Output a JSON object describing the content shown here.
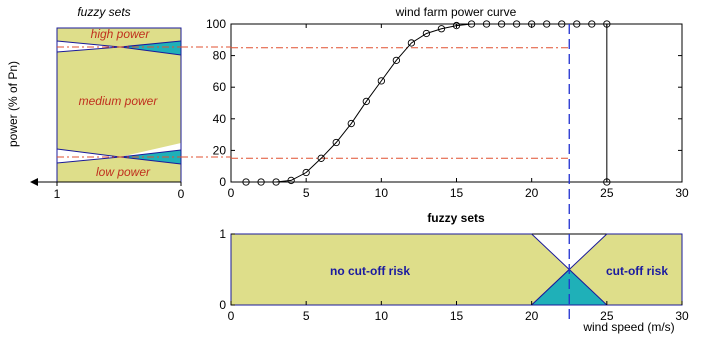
{
  "colors": {
    "fuzzy_fill": "#dede8a",
    "overlap_fill": "#1fb0b8",
    "dashdot_red": "#e05030",
    "dash_blue": "#2030d0",
    "curve": "#000000"
  },
  "chart_data": [
    {
      "type": "line",
      "title": "wind farm power curve",
      "xlim": [
        0,
        30
      ],
      "ylim": [
        0,
        100
      ],
      "x_ticks": [
        "0",
        "5",
        "10",
        "15",
        "20",
        "25",
        "30"
      ],
      "y_ticks": [
        "0",
        "20",
        "40",
        "60",
        "80",
        "100"
      ],
      "ylabel": "power (% of Pn)",
      "grid": false,
      "series": [
        {
          "x": [
            1,
            2,
            3,
            4,
            5,
            6,
            7,
            8,
            9,
            10,
            11,
            12,
            13,
            14,
            15,
            16,
            17,
            18,
            19,
            20,
            21,
            22,
            23,
            24,
            25,
            25
          ],
          "y": [
            0,
            0,
            0,
            1,
            6,
            15,
            25,
            37,
            51,
            64,
            77,
            88,
            94,
            97,
            99,
            100,
            100,
            100,
            100,
            100,
            100,
            100,
            100,
            100,
            100,
            0
          ]
        }
      ],
      "reference_lines": {
        "horizontal_dashdot": [
          85,
          15
        ],
        "vertical_dashed_x": 22.5
      }
    },
    {
      "type": "area",
      "title": "fuzzy sets",
      "xlabel": "wind speed (m/s)",
      "xlim": [
        0,
        30
      ],
      "ylim": [
        0,
        1
      ],
      "x_ticks": [
        "0",
        "5",
        "10",
        "15",
        "20",
        "25",
        "30"
      ],
      "y_ticks": [
        "0",
        "1"
      ],
      "sets": [
        {
          "name": "no cut-off risk",
          "x": [
            0,
            20,
            25
          ],
          "y": [
            1,
            1,
            0
          ]
        },
        {
          "name": "cut-off risk",
          "x": [
            20,
            25,
            30
          ],
          "y": [
            0,
            1,
            1
          ]
        }
      ]
    },
    {
      "type": "area",
      "title": "fuzzy sets",
      "x_ticks": [
        "1",
        "0"
      ],
      "sets": [
        {
          "name": "high power"
        },
        {
          "name": "medium power"
        },
        {
          "name": "low power"
        }
      ]
    }
  ]
}
